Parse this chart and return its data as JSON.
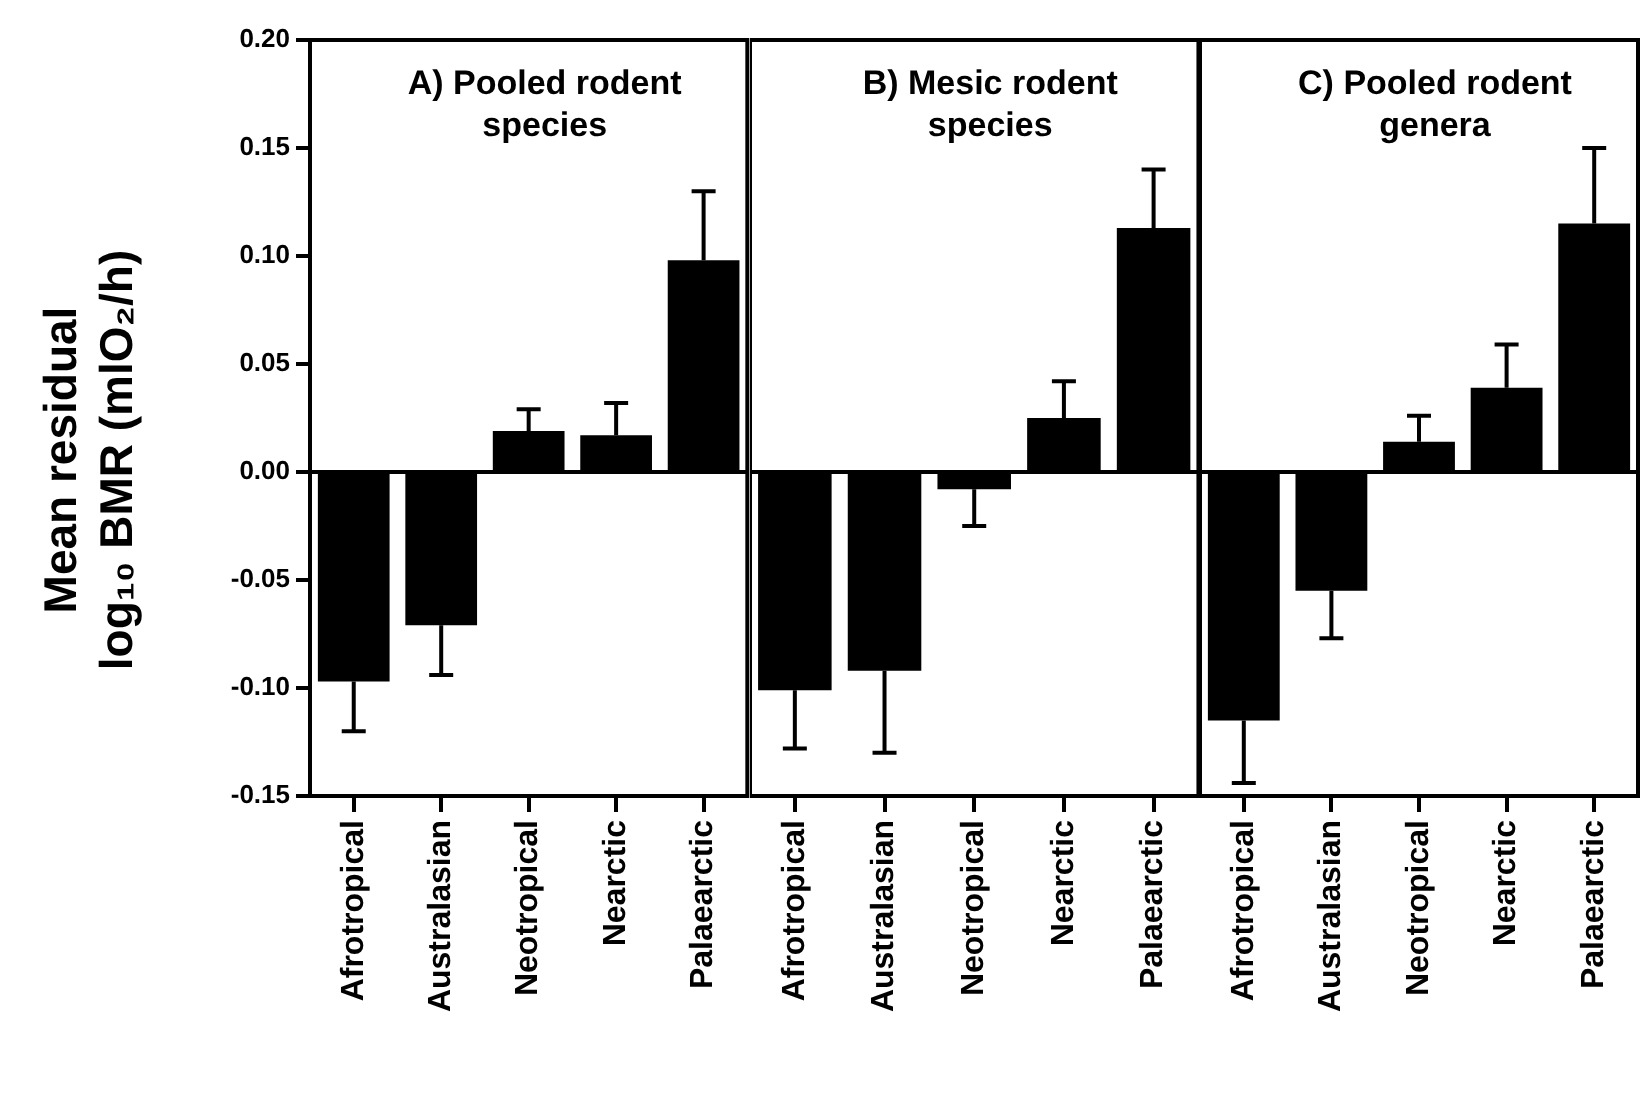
{
  "chart_data": [
    {
      "type": "bar",
      "title": "A) Pooled rodent species",
      "ylabel": "Mean residual log₁₀ BMR (mlO₂/h)",
      "categories": [
        "Afrotropical",
        "Australasian",
        "Neotropical",
        "Nearctic",
        "Palaearctic"
      ],
      "values": [
        -0.097,
        -0.071,
        0.019,
        0.017,
        0.098
      ],
      "color": "#000000",
      "errors": [
        [
          -0.12,
          -0.097
        ],
        [
          -0.094,
          -0.071
        ],
        [
          0.019,
          0.029
        ],
        [
          0.017,
          0.032
        ],
        [
          0.098,
          0.13
        ]
      ],
      "ylim": [
        -0.15,
        0.2
      ],
      "yticks": [
        {
          "value": 0.2,
          "label": "0.20"
        },
        {
          "value": 0.15,
          "label": "0.15"
        },
        {
          "value": 0.1,
          "label": "0.10"
        },
        {
          "value": 0.05,
          "label": "0.05"
        },
        {
          "value": 0,
          "label": "0.00"
        },
        {
          "value": -0.05,
          "label": "-0.05"
        },
        {
          "value": -0.1,
          "label": "-0.10"
        },
        {
          "value": -0.15,
          "label": "-0.15"
        }
      ],
      "ref_lines": [
        {
          "axis": "y",
          "value": 0
        }
      ]
    },
    {
      "type": "bar",
      "title": "B) Mesic rodent species",
      "categories": [
        "Afrotropical",
        "Australasian",
        "Neotropical",
        "Nearctic",
        "Palaearctic"
      ],
      "values": [
        -0.101,
        -0.092,
        -0.008,
        0.025,
        0.113
      ],
      "color": "#000000",
      "errors": [
        [
          -0.128,
          -0.101
        ],
        [
          -0.13,
          -0.092
        ],
        [
          -0.025,
          -0.008
        ],
        [
          0.025,
          0.042
        ],
        [
          0.113,
          0.14
        ]
      ],
      "ylim": [
        -0.15,
        0.2
      ],
      "tick_labels": "x",
      "ref_lines": [
        {
          "axis": "y",
          "value": 0
        }
      ]
    },
    {
      "type": "bar",
      "title": "C) Pooled rodent genera",
      "categories": [
        "Afrotropical",
        "Australasian",
        "Neotropical",
        "Nearctic",
        "Palaearctic"
      ],
      "values": [
        -0.115,
        -0.055,
        0.014,
        0.039,
        0.115
      ],
      "color": "#000000",
      "errors": [
        [
          -0.144,
          -0.115
        ],
        [
          -0.077,
          -0.055
        ],
        [
          0.014,
          0.026
        ],
        [
          0.039,
          0.059
        ],
        [
          0.115,
          0.15
        ]
      ],
      "ylim": [
        -0.15,
        0.2
      ],
      "tick_labels": "x",
      "ref_lines": [
        {
          "axis": "y",
          "value": 0
        }
      ]
    }
  ]
}
